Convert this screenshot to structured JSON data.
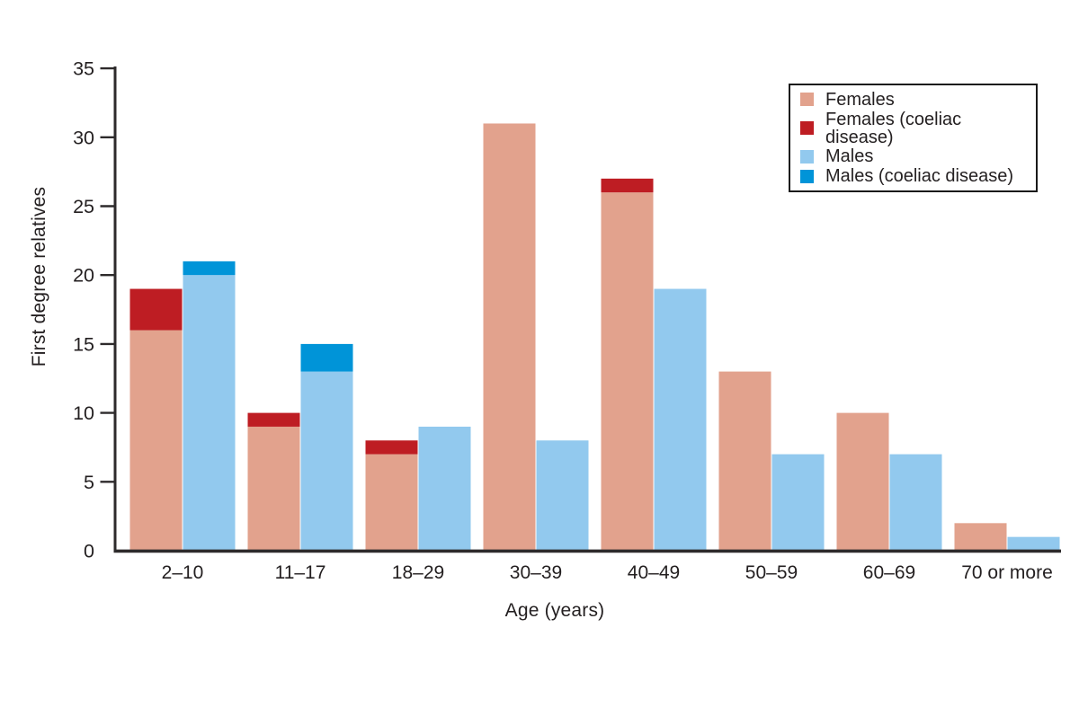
{
  "figure": {
    "background": "#ffffff",
    "axis_color": "#2d2a2b",
    "text_color": "#231f20"
  },
  "chart_data": {
    "type": "bar",
    "variant": "grouped-stacked",
    "title": "",
    "xlabel": "Age (years)",
    "ylabel": "First degree relatives",
    "categories": [
      "2–10",
      "11–17",
      "18–29",
      "30–39",
      "40–49",
      "50–59",
      "60–69",
      "70 or more"
    ],
    "series": [
      {
        "name": "Females",
        "color": "#e2a28d",
        "stack": "females",
        "values": [
          16,
          9,
          7,
          31,
          26,
          13,
          10,
          2
        ]
      },
      {
        "name": "Females (coeliac disease)",
        "color": "#be1d23",
        "stack": "females",
        "values": [
          3,
          1,
          1,
          0,
          1,
          0,
          0,
          0
        ]
      },
      {
        "name": "Males",
        "color": "#92c9ee",
        "stack": "males",
        "values": [
          20,
          13,
          9,
          8,
          19,
          7,
          7,
          1
        ]
      },
      {
        "name": "Males (coeliac disease)",
        "color": "#0094d8",
        "stack": "males",
        "values": [
          1,
          2,
          0,
          0,
          0,
          0,
          0,
          0
        ]
      }
    ],
    "stack_totals": {
      "females": [
        19,
        10,
        8,
        31,
        27,
        13,
        10,
        2
      ],
      "males": [
        21,
        15,
        9,
        8,
        19,
        7,
        7,
        1
      ]
    },
    "ylim": [
      0,
      35
    ],
    "yticks": [
      0,
      5,
      10,
      15,
      20,
      25,
      30,
      35
    ],
    "grid": false,
    "legend_position": "top-right"
  }
}
